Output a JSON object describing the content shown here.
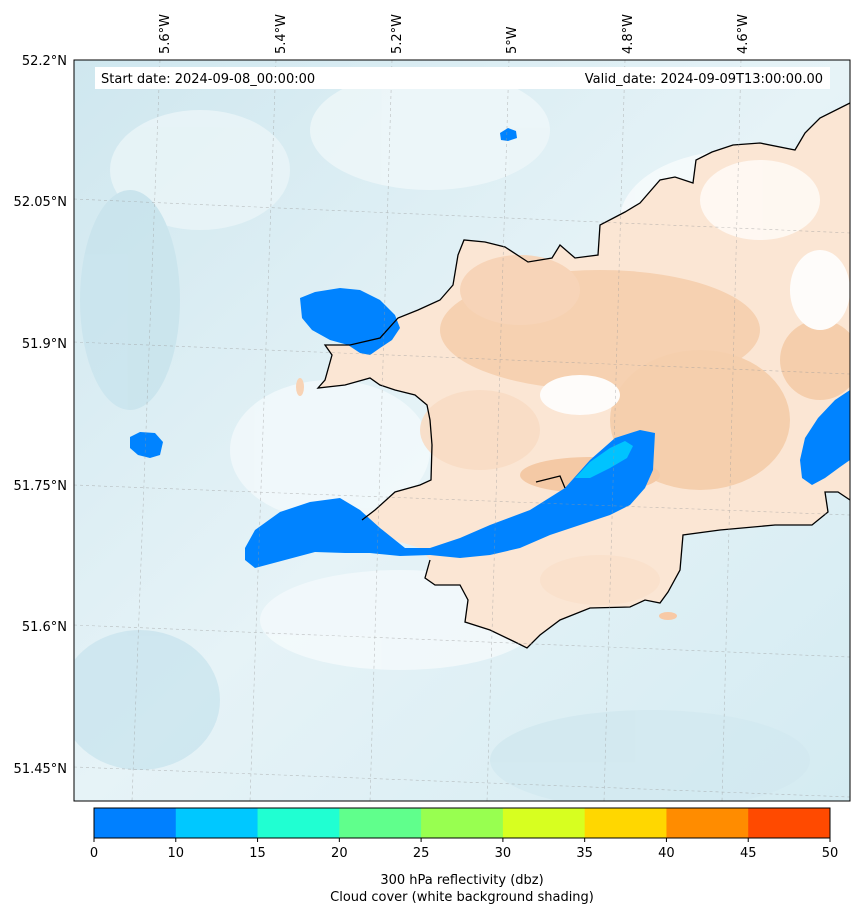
{
  "map": {
    "start_date": "Start date: 2024-09-08_00:00:00",
    "valid_date": "Valid_date: 2024-09-09T13:00:00.00",
    "lon_labels": [
      "5.6°W",
      "5.4°W",
      "5.2°W",
      "5°W",
      "4.8°W",
      "4.6°W"
    ],
    "lat_labels": [
      "52.2°N",
      "52.05°N",
      "51.9°N",
      "51.75°N",
      "51.6°N",
      "51.45°N"
    ],
    "colors": {
      "sea_base": "#dbeef3",
      "land_base": "#fbe4d1",
      "reflectivity_low": "#0080ff",
      "reflectivity_mid": "#00c8ff",
      "coastline": "#000000"
    }
  },
  "colorbar": {
    "ticks": [
      "0",
      "10",
      "15",
      "20",
      "25",
      "30",
      "35",
      "40",
      "45",
      "50"
    ],
    "colors": [
      "#0080ff",
      "#00c8ff",
      "#20ffd2",
      "#60ff8c",
      "#98ff50",
      "#d7ff20",
      "#ffd700",
      "#ff8c00",
      "#ff4a00"
    ],
    "label_line1": "300 hPa reflectivity (dbz)",
    "label_line2": "Cloud cover (white background shading)"
  }
}
